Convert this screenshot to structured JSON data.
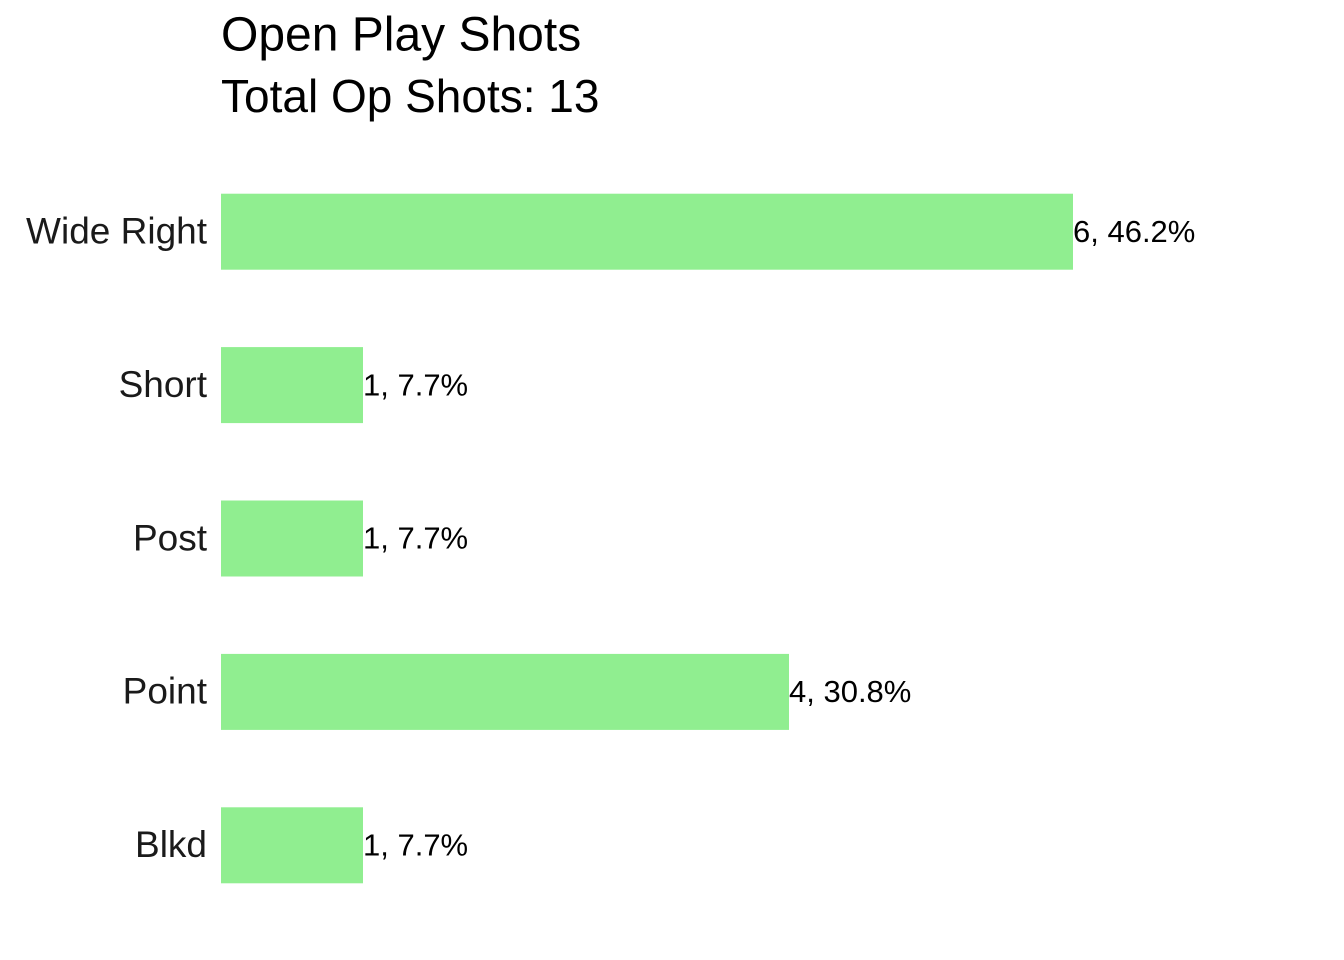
{
  "chart_data": {
    "type": "bar",
    "orientation": "horizontal",
    "title": "Open Play Shots",
    "subtitle": "Total Op Shots: 13",
    "categories": [
      "Wide Right",
      "Short",
      "Post",
      "Point",
      "Blkd"
    ],
    "values": [
      6,
      1,
      1,
      4,
      1
    ],
    "value_labels": [
      "6, 46.2%",
      "1, 7.7%",
      "1, 7.7%",
      "4, 30.8%",
      "1, 7.7%"
    ],
    "color": "#90ee90",
    "grid": false
  }
}
